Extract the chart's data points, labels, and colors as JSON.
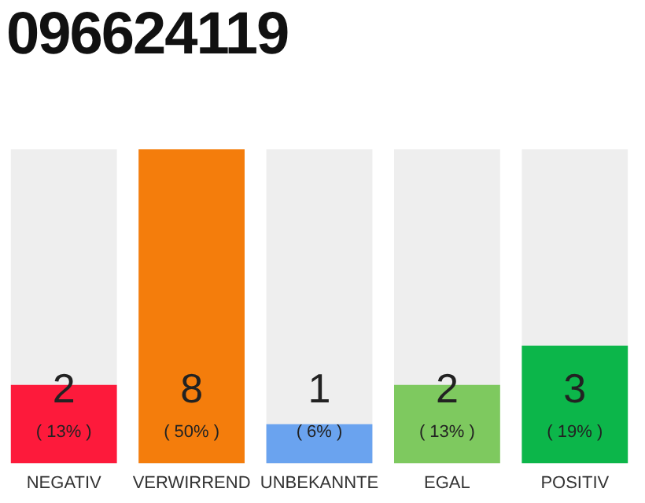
{
  "chart_data": {
    "type": "bar",
    "title": "096624119",
    "categories": [
      "NEGATIV",
      "VERWIRREND",
      "UNBEKANNTE",
      "EGAL",
      "POSITIV"
    ],
    "values": [
      2,
      8,
      1,
      2,
      3
    ],
    "colors": [
      "#fd1a3b",
      "#f47d0c",
      "#6aa3ef",
      "#7ec95f",
      "#0cb64a"
    ],
    "data_labels": true,
    "annotations": [
      "( 13% )",
      "( 50% )",
      "( 6% )",
      "( 13% )",
      "( 19% )"
    ],
    "grid": false,
    "legend": false
  }
}
